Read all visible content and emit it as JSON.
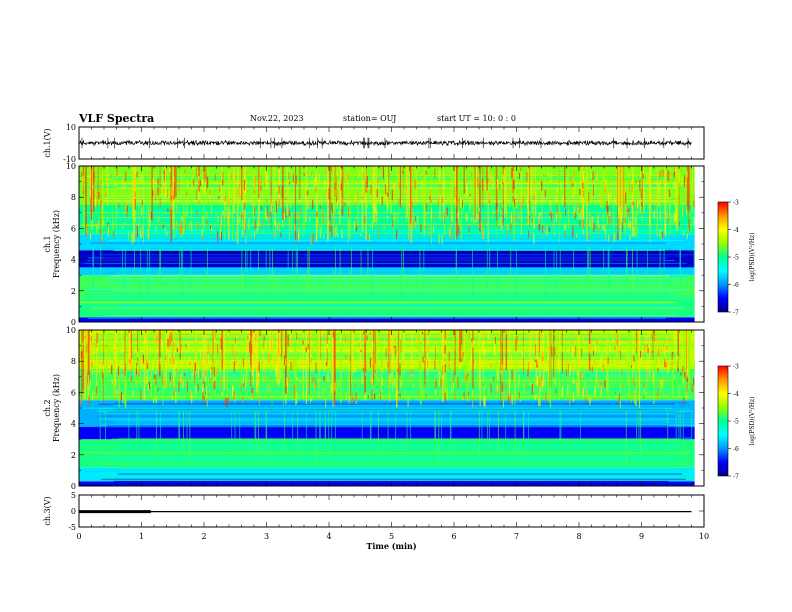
{
  "header": {
    "title": "VLF Spectra",
    "date": "Nov.22, 2023",
    "station": "station= OUJ",
    "start_ut": "start  UT =   10: 0  : 0"
  },
  "colors": {
    "background": "#ffffff",
    "axis": "#000000",
    "colormap": [
      "#00008c",
      "#0000ff",
      "#0096ff",
      "#00ffff",
      "#00ff96",
      "#96ff00",
      "#ffff00",
      "#ff9600",
      "#ff0000",
      "#ffffff"
    ]
  },
  "chart_data": [
    {
      "type": "line",
      "name": "ch1-waveform",
      "ylabel": "ch.1(V)",
      "ylim": [
        -10,
        10
      ],
      "yticks": [
        "10",
        "-10"
      ],
      "xlim": [
        0,
        10
      ],
      "series": [
        {
          "x": [
            0,
            9.8
          ],
          "mean": 0,
          "envelope": [
            -1.5,
            1.5
          ]
        }
      ]
    },
    {
      "type": "heatmap",
      "name": "ch1-spectrogram",
      "ylabel": "ch.1\nFrequency (kHz)",
      "ylim": [
        0,
        10
      ],
      "yticks": [
        "0",
        "2",
        "4",
        "6",
        "8",
        "10"
      ],
      "xlim": [
        0,
        10
      ],
      "data_xmax": 9.85,
      "colorbar": {
        "label": "log(PSD)(V²/Hz)",
        "range": [
          -7,
          -3
        ],
        "ticks": [
          "-3",
          "-4",
          "-5",
          "-6",
          "-7"
        ]
      },
      "bands": [
        {
          "f": [
            0,
            0.3
          ],
          "level": 0.12
        },
        {
          "f": [
            0.3,
            1.5
          ],
          "level": 0.52
        },
        {
          "f": [
            1.5,
            3.0
          ],
          "level": 0.55
        },
        {
          "f": [
            3.0,
            3.5
          ],
          "level": 0.32
        },
        {
          "f": [
            3.5,
            4.6
          ],
          "level": 0.07
        },
        {
          "f": [
            4.6,
            5.6
          ],
          "level": 0.33
        },
        {
          "f": [
            5.6,
            7.5
          ],
          "level": 0.5
        },
        {
          "f": [
            7.5,
            10
          ],
          "level": 0.6
        }
      ]
    },
    {
      "type": "heatmap",
      "name": "ch2-spectrogram",
      "ylabel": "ch.2\nFrequency (kHz)",
      "ylim": [
        0,
        10
      ],
      "yticks": [
        "0",
        "2",
        "4",
        "6",
        "8",
        "10"
      ],
      "xlim": [
        0,
        10
      ],
      "data_xmax": 9.85,
      "colorbar": {
        "label": "log(PSD)(V²/Hz)",
        "range": [
          -7,
          -3
        ],
        "ticks": [
          "-3",
          "-4",
          "-5",
          "-6",
          "-7"
        ]
      },
      "bands": [
        {
          "f": [
            0,
            0.3
          ],
          "level": 0.1
        },
        {
          "f": [
            0.3,
            1.2
          ],
          "level": 0.35
        },
        {
          "f": [
            1.2,
            3.0
          ],
          "level": 0.52
        },
        {
          "f": [
            3.0,
            3.8
          ],
          "level": 0.12
        },
        {
          "f": [
            3.8,
            5.5
          ],
          "level": 0.28
        },
        {
          "f": [
            5.5,
            7.5
          ],
          "level": 0.55
        },
        {
          "f": [
            7.5,
            10
          ],
          "level": 0.66
        }
      ]
    },
    {
      "type": "line",
      "name": "ch3-signal",
      "ylabel": "ch.3(V)",
      "ylim": [
        -5,
        5
      ],
      "yticks": [
        "5",
        "0",
        "-5"
      ],
      "xlim": [
        0,
        10
      ],
      "xlabel": "Time (min)",
      "xticks": [
        "0",
        "1",
        "2",
        "3",
        "4",
        "5",
        "6",
        "7",
        "8",
        "9",
        "10"
      ],
      "series": [
        {
          "x": [
            0,
            1.15,
            9.8
          ],
          "y": [
            -0.2,
            -0.2,
            -0.2
          ],
          "thick_until": 1.15
        }
      ]
    }
  ]
}
